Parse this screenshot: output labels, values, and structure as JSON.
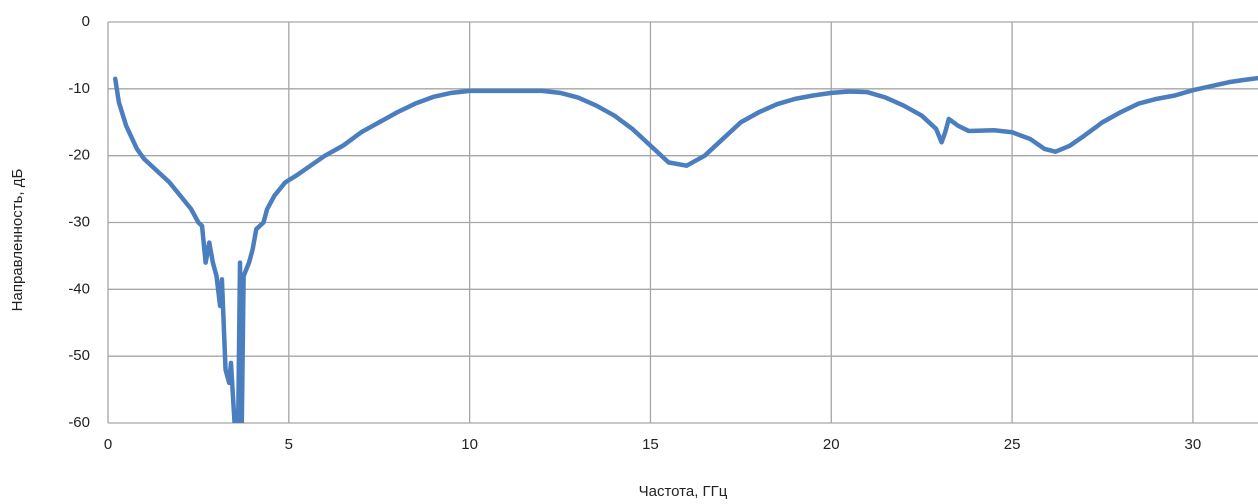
{
  "chart_data": {
    "type": "line",
    "x_label": "Частота, ГГц",
    "y_label": "Направленность, дБ",
    "x": [
      0.2,
      0.3,
      0.5,
      0.8,
      1.0,
      1.3,
      1.7,
      2.0,
      2.3,
      2.5,
      2.6,
      2.7,
      2.8,
      2.9,
      3.0,
      3.1,
      3.15,
      3.25,
      3.35,
      3.4,
      3.5,
      3.6,
      3.65,
      3.7,
      3.75,
      3.9,
      4.0,
      4.1,
      4.3,
      4.4,
      4.6,
      4.9,
      5.2,
      5.6,
      6.0,
      6.5,
      7.0,
      7.5,
      8.0,
      8.5,
      9.0,
      9.5,
      10,
      11,
      12,
      12.5,
      13,
      13.5,
      14,
      14.5,
      15,
      15.5,
      16,
      16.5,
      17,
      17.5,
      18,
      18.5,
      19,
      19.5,
      20,
      20.5,
      21,
      21.5,
      22,
      22.5,
      22.9,
      23.05,
      23.15,
      23.25,
      23.5,
      23.8,
      24.5,
      25,
      25.5,
      25.9,
      26.2,
      26.6,
      27,
      27.5,
      28,
      28.5,
      29,
      29.5,
      30,
      30.5,
      31,
      31.5,
      31.8
    ],
    "series": [
      {
        "color": "#4a7ebf",
        "values": [
          -8.5,
          -12,
          -15.5,
          -19,
          -20.5,
          -22,
          -24,
          -26,
          -28,
          -30,
          -30.5,
          -36,
          -33,
          -36,
          -38,
          -42.5,
          -38.5,
          -52,
          -54,
          -51,
          -60,
          -60,
          -36,
          -60,
          -38,
          -36,
          -34,
          -31,
          -30,
          -28,
          -26,
          -24,
          -23,
          -21.5,
          -20,
          -18.5,
          -16.5,
          -15,
          -13.5,
          -12.2,
          -11.2,
          -10.6,
          -10.3,
          -10.3,
          -10.3,
          -10.6,
          -11.3,
          -12.5,
          -14,
          -16,
          -18.5,
          -21,
          -21.5,
          -20,
          -17.5,
          -15,
          -13.5,
          -12.3,
          -11.5,
          -11,
          -10.6,
          -10.4,
          -10.5,
          -11.3,
          -12.5,
          -14,
          -16,
          -18,
          -16.5,
          -14.5,
          -15.5,
          -16.3,
          -16.2,
          -16.5,
          -17.5,
          -19,
          -19.4,
          -18.5,
          -17,
          -15,
          -13.5,
          -12.2,
          -11.5,
          -11,
          -10.2,
          -9.6,
          -9,
          -8.6,
          -8.4
        ]
      }
    ],
    "xlim": [
      0,
      31.8
    ],
    "ylim": [
      -60,
      0
    ],
    "xticks": [
      0,
      5,
      10,
      15,
      20,
      25,
      30
    ],
    "yticks": [
      0,
      -10,
      -20,
      -30,
      -40,
      -50,
      -60
    ],
    "grid": true
  }
}
